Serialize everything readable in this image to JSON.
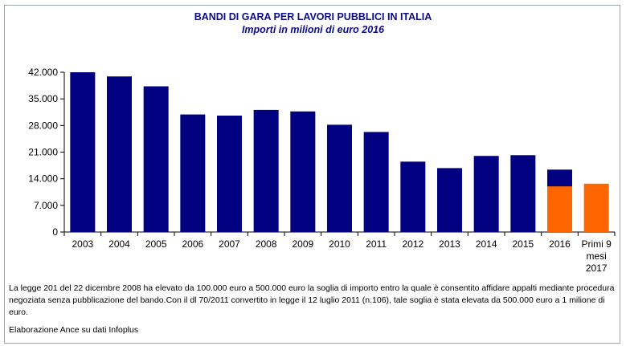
{
  "chart_data": {
    "type": "bar",
    "title": "BANDI DI GARA PER LAVORI PUBBLICI IN ITALIA",
    "subtitle": "Importi in milioni di euro 2016",
    "categories": [
      "2003",
      "2004",
      "2005",
      "2006",
      "2007",
      "2008",
      "2009",
      "2010",
      "2011",
      "2012",
      "2013",
      "2014",
      "2015",
      "2016",
      "Primi 9 mesi 2017"
    ],
    "series": [
      {
        "values": [
          42000,
          40900,
          38300,
          30900,
          30600,
          32100,
          31700,
          28200,
          26300,
          18500,
          16800,
          20000,
          20200,
          16400,
          null
        ],
        "color": "#000080"
      },
      {
        "values": [
          null,
          null,
          null,
          null,
          null,
          null,
          null,
          null,
          null,
          null,
          null,
          null,
          null,
          12000,
          12700
        ],
        "color": "#ff6600"
      }
    ],
    "yticks": [
      "0",
      "7.000",
      "14.000",
      "21.000",
      "28.000",
      "35.000",
      "42.000"
    ],
    "ylim": [
      0,
      42000
    ],
    "grid": false,
    "legend": "none"
  },
  "note": "La legge 201 del 22 dicembre 2008 ha elevato da 100.000 euro a  500.000 euro la soglia di importo entro la quale è consentito affidare appalti mediante procedura negoziata senza pubblicazione del bando.Con il dl 70/2011 convertito in legge il 12 luglio 2011 (n.106), tale soglia è stata elevata da 500.000 euro a 1 milione di euro.",
  "source": "Elaborazione Ance su dati Infoplus"
}
